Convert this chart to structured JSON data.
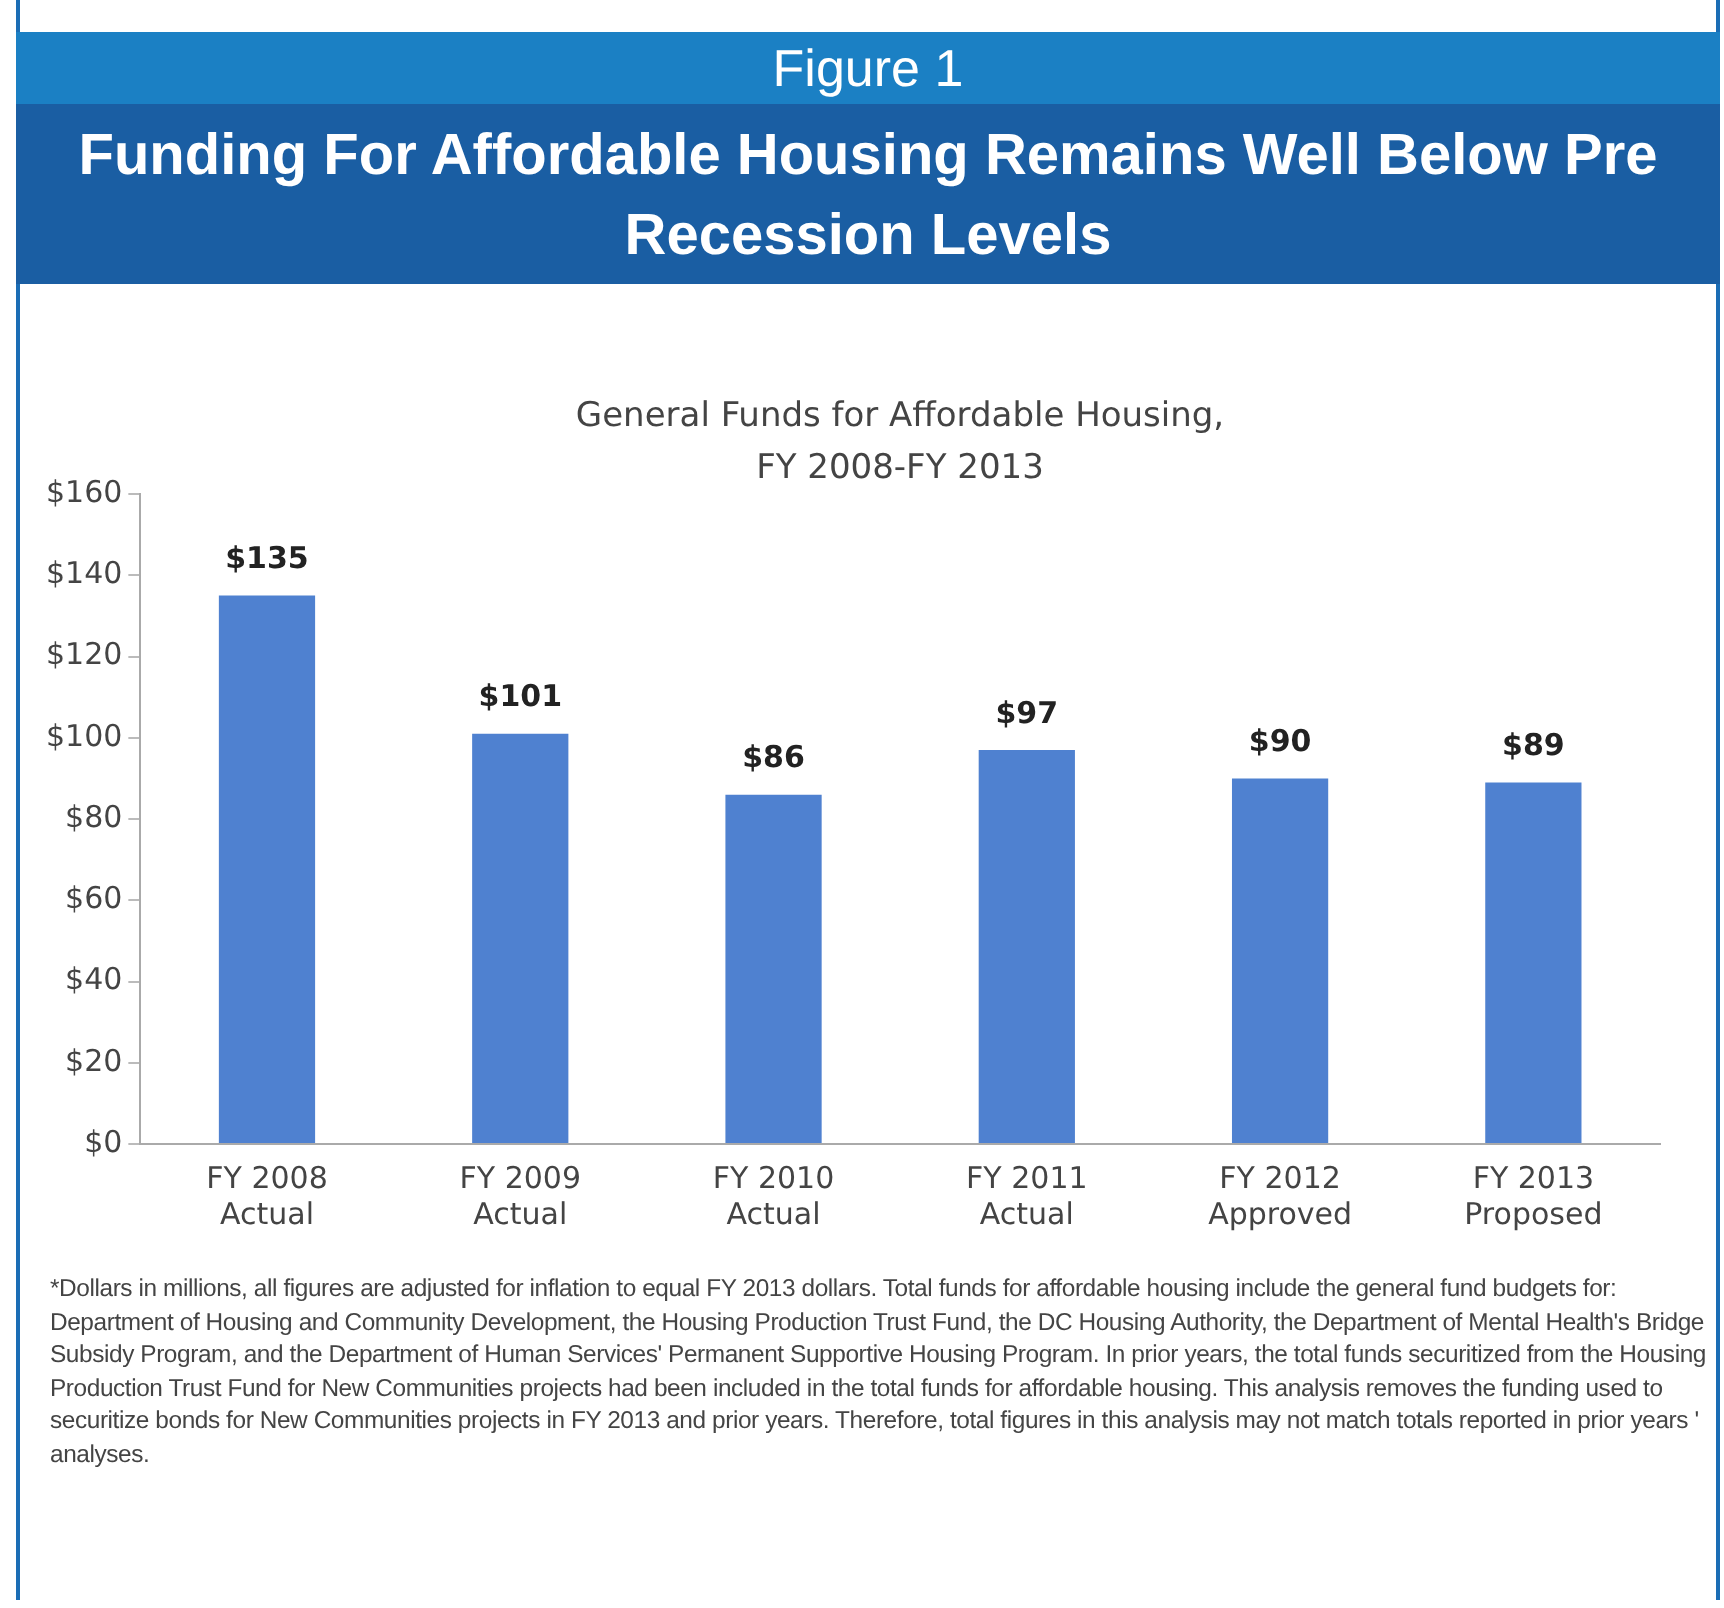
{
  "chart_data": {
    "type": "bar",
    "subtitle": "Figure 1",
    "title": "Funding For Affordable Housing Remains Well Below Pre Recession Levels",
    "annotations": [
      "General Funds for Affordable Housing,\nFY 2008-FY 2013",
      "*Dollars in millions, all figures are adjusted for inflation to equal FY 2013 dollars.  Total funds for affordable housing include the general fund budgets for:  Department of Housing and Community Development, the Housing Production Trust Fund, the DC Housing Authority, the Department of Mental Health's Bridge Subsidy Program, and the Department of Human Services' Permanent Supportive Housing Program.  In prior years, the total funds  securitized from the Housing Production Trust Fund for New Communities projects had been included in the total funds for affordable housing.  This analysis removes the funding used to securitize bonds for New Communities projects in FY 2013 and prior years.  Therefore, total figures in this analysis may not match totals reported in prior years ' analyses."
    ],
    "categories": [
      "FY 2008\nActual",
      "FY 2009\nActual",
      "FY 2010\nActual",
      "FY 2011\nActual",
      "FY 2012\nApproved",
      "FY 2013\nProposed"
    ],
    "values": [
      135,
      101,
      86,
      97,
      90,
      89
    ],
    "value_labels": [
      "$135",
      "$101",
      "$86",
      "$97",
      "$90",
      "$89"
    ],
    "color": "#4f81d0",
    "ylim": [
      0,
      160
    ],
    "yticks": [
      {
        "value": 0,
        "label": "$0"
      },
      {
        "value": 20,
        "label": "$20"
      },
      {
        "value": 40,
        "label": "$40"
      },
      {
        "value": 60,
        "label": "$60"
      },
      {
        "value": 80,
        "label": "$80"
      },
      {
        "value": 100,
        "label": "$100"
      },
      {
        "value": 120,
        "label": "$120"
      },
      {
        "value": 140,
        "label": "$140"
      },
      {
        "value": 160,
        "label": "$160"
      }
    ],
    "grid": false,
    "legend": false
  }
}
